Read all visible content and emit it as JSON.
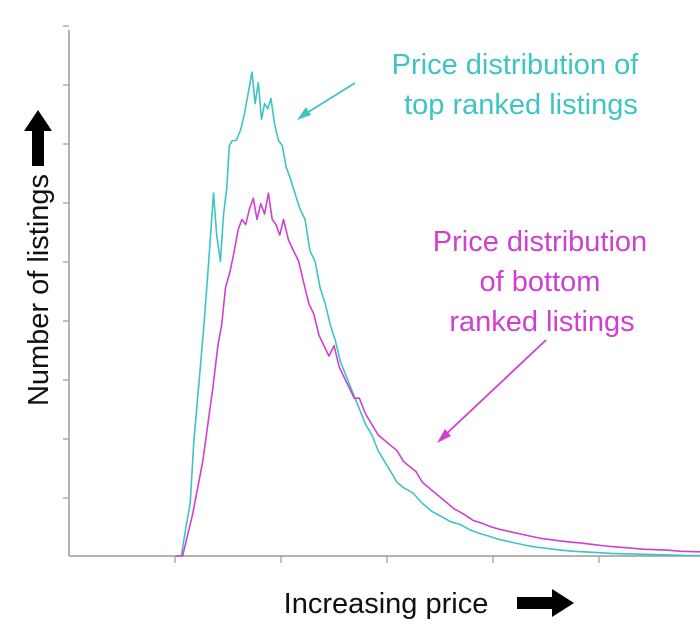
{
  "chart_data": {
    "type": "line",
    "title": "",
    "xlabel": "Increasing price",
    "ylabel": "Number of listings",
    "xlim": [
      0,
      100
    ],
    "ylim": [
      0,
      100
    ],
    "x_tick_count": 6,
    "y_tick_count": 9,
    "grid": false,
    "series": [
      {
        "key": "top",
        "color": "#3ec4c4",
        "label_lines": [
          "Price distribution of",
          "top ranked listings"
        ],
        "points": [
          [
            16.8,
            0
          ],
          [
            17.8,
            0
          ],
          [
            18.6,
            6
          ],
          [
            19.2,
            10
          ],
          [
            19.8,
            22
          ],
          [
            20.6,
            33
          ],
          [
            21.4,
            44
          ],
          [
            22.2,
            57
          ],
          [
            22.9,
            69
          ],
          [
            23.4,
            61
          ],
          [
            24.0,
            56
          ],
          [
            24.5,
            65
          ],
          [
            25.0,
            70
          ],
          [
            25.4,
            78
          ],
          [
            25.9,
            79
          ],
          [
            26.5,
            79
          ],
          [
            27.2,
            81
          ],
          [
            27.8,
            84
          ],
          [
            28.4,
            88
          ],
          [
            29.0,
            92
          ],
          [
            29.5,
            86
          ],
          [
            30.0,
            90
          ],
          [
            30.5,
            83
          ],
          [
            31.0,
            86
          ],
          [
            31.5,
            85
          ],
          [
            32.0,
            87
          ],
          [
            32.6,
            82
          ],
          [
            33.2,
            79
          ],
          [
            33.8,
            78
          ],
          [
            34.4,
            74
          ],
          [
            35.0,
            72
          ],
          [
            35.8,
            69
          ],
          [
            36.6,
            66
          ],
          [
            37.4,
            64
          ],
          [
            38.2,
            58
          ],
          [
            39.0,
            56
          ],
          [
            39.8,
            51
          ],
          [
            40.6,
            48
          ],
          [
            41.4,
            44
          ],
          [
            42.2,
            41
          ],
          [
            43.0,
            37
          ],
          [
            44.0,
            34
          ],
          [
            45.0,
            31
          ],
          [
            46.0,
            28
          ],
          [
            47.0,
            25
          ],
          [
            48.0,
            23
          ],
          [
            49.0,
            20
          ],
          [
            50.0,
            18
          ],
          [
            51.0,
            16
          ],
          [
            52.0,
            14
          ],
          [
            53.0,
            13
          ],
          [
            54.5,
            12
          ],
          [
            56.0,
            10
          ],
          [
            57.5,
            8.5
          ],
          [
            59.0,
            7.5
          ],
          [
            60.5,
            6.5
          ],
          [
            62.0,
            6
          ],
          [
            63.5,
            5
          ],
          [
            65.0,
            4.3
          ],
          [
            66.5,
            3.8
          ],
          [
            68.0,
            3.2
          ],
          [
            69.5,
            2.8
          ],
          [
            71.0,
            2.4
          ],
          [
            72.5,
            2
          ],
          [
            74.0,
            1.7
          ],
          [
            76.0,
            1.4
          ],
          [
            78.0,
            1.1
          ],
          [
            80.0,
            0.9
          ],
          [
            83.0,
            0.7
          ],
          [
            86.0,
            0.5
          ],
          [
            89.0,
            0.4
          ],
          [
            92.0,
            0.3
          ],
          [
            95.0,
            0.2
          ],
          [
            98.0,
            0.1
          ],
          [
            100.0,
            0.1
          ]
        ]
      },
      {
        "key": "bottom",
        "color": "#d13fd1",
        "label_lines": [
          "Price distribution",
          "of bottom",
          "ranked listings"
        ],
        "points": [
          [
            17.0,
            0
          ],
          [
            18.0,
            0
          ],
          [
            18.8,
            4
          ],
          [
            19.6,
            8
          ],
          [
            20.4,
            13
          ],
          [
            21.2,
            18
          ],
          [
            22.0,
            25
          ],
          [
            22.8,
            32
          ],
          [
            23.6,
            40
          ],
          [
            24.2,
            44
          ],
          [
            24.8,
            51
          ],
          [
            25.5,
            54
          ],
          [
            26.2,
            58
          ],
          [
            26.8,
            62
          ],
          [
            27.4,
            64
          ],
          [
            28.0,
            63
          ],
          [
            28.6,
            66
          ],
          [
            29.2,
            68
          ],
          [
            29.8,
            64
          ],
          [
            30.4,
            67
          ],
          [
            31.0,
            65
          ],
          [
            31.6,
            69
          ],
          [
            32.2,
            64
          ],
          [
            32.8,
            63
          ],
          [
            33.4,
            61
          ],
          [
            34.0,
            64
          ],
          [
            34.8,
            60
          ],
          [
            35.6,
            58
          ],
          [
            36.4,
            56
          ],
          [
            37.2,
            52
          ],
          [
            38.0,
            48
          ],
          [
            38.8,
            46
          ],
          [
            39.6,
            42
          ],
          [
            40.4,
            40
          ],
          [
            41.2,
            38
          ],
          [
            42.0,
            40
          ],
          [
            42.8,
            36
          ],
          [
            43.6,
            34
          ],
          [
            44.4,
            32
          ],
          [
            45.2,
            30
          ],
          [
            46.0,
            30
          ],
          [
            47.0,
            27
          ],
          [
            48.0,
            25
          ],
          [
            49.0,
            23
          ],
          [
            50.0,
            22
          ],
          [
            51.0,
            21
          ],
          [
            52.0,
            20
          ],
          [
            53.0,
            18
          ],
          [
            54.0,
            17
          ],
          [
            55.0,
            16
          ],
          [
            56.0,
            14
          ],
          [
            57.0,
            13
          ],
          [
            58.0,
            12
          ],
          [
            59.0,
            11
          ],
          [
            60.0,
            10
          ],
          [
            61.0,
            9
          ],
          [
            62.5,
            8
          ],
          [
            64.0,
            6.8
          ],
          [
            65.5,
            6.2
          ],
          [
            67.0,
            5.5
          ],
          [
            68.5,
            5
          ],
          [
            70.0,
            4.6
          ],
          [
            71.5,
            4.2
          ],
          [
            73.0,
            3.8
          ],
          [
            75.0,
            3.3
          ],
          [
            77.0,
            3
          ],
          [
            79.0,
            2.7
          ],
          [
            81.0,
            2.5
          ],
          [
            83.0,
            2.2
          ],
          [
            85.0,
            1.9
          ],
          [
            87.0,
            1.7
          ],
          [
            89.0,
            1.5
          ],
          [
            91.0,
            1.3
          ],
          [
            93.0,
            1.2
          ],
          [
            95.0,
            1.1
          ],
          [
            97.0,
            0.9
          ],
          [
            100.0,
            0.8
          ]
        ]
      }
    ]
  }
}
